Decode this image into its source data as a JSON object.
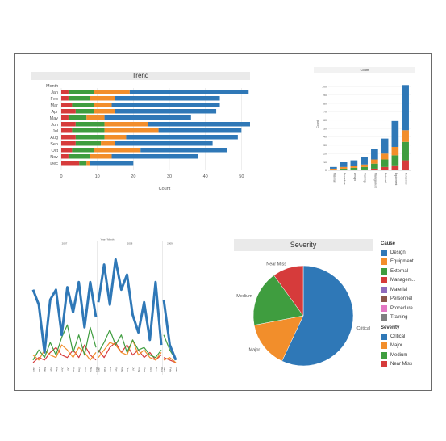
{
  "colors": {
    "Design": "#2f78b7",
    "Equipment": "#f28e2b",
    "External": "#3f9d3f",
    "Management": "#d63b3b",
    "Material": "#8f6bbd",
    "Personnel": "#8c564b",
    "Procedure": "#e377c2",
    "Training": "#7f7f7f"
  },
  "chart_data": [
    {
      "type": "bar",
      "orientation": "horizontal",
      "stacked": true,
      "title": "Trend",
      "ylabel": "Month",
      "xlabel": "Count",
      "xlim": [
        0,
        60
      ],
      "xticks": [
        "0",
        "10",
        "20",
        "30",
        "40",
        "50",
        "60"
      ],
      "grid": true,
      "categories": [
        "Jan",
        "Feb",
        "Mar",
        "Apr",
        "May",
        "Jun",
        "Jul",
        "Aug",
        "Sep",
        "Oct",
        "Nov",
        "Dec"
      ],
      "series": [
        {
          "name": "Management",
          "values": [
            2,
            2,
            3,
            4,
            2,
            4,
            3,
            4,
            4,
            3,
            2,
            5
          ]
        },
        {
          "name": "External",
          "values": [
            7,
            6,
            6,
            5,
            5,
            8,
            9,
            8,
            7,
            6,
            6,
            2
          ]
        },
        {
          "name": "Equipment",
          "values": [
            10,
            7,
            5,
            6,
            5,
            12,
            15,
            6,
            4,
            13,
            6,
            1
          ]
        },
        {
          "name": "Design",
          "values": [
            33,
            29,
            30,
            28,
            24,
            34,
            23,
            31,
            27,
            24,
            24,
            12
          ]
        }
      ]
    },
    {
      "type": "bar",
      "stacked": true,
      "title": "Count",
      "ylabel": "Count",
      "ylim": [
        0,
        110
      ],
      "yticks": [
        "0",
        "10",
        "20",
        "30",
        "40",
        "50",
        "60",
        "70",
        "80",
        "90",
        "100"
      ],
      "categories": [
        "Material",
        "Procedure",
        "Design",
        "Training",
        "Management",
        "External",
        "Equipment",
        "Personnel"
      ],
      "series": [
        {
          "name": "Near Miss",
          "values": [
            0,
            1,
            1,
            1,
            2,
            4,
            6,
            12
          ]
        },
        {
          "name": "Medium",
          "values": [
            1,
            1,
            2,
            3,
            6,
            9,
            12,
            22
          ]
        },
        {
          "name": "Major",
          "values": [
            1,
            2,
            2,
            3,
            5,
            7,
            10,
            14
          ]
        },
        {
          "name": "Critical",
          "values": [
            2,
            6,
            7,
            9,
            13,
            18,
            31,
            54
          ]
        }
      ]
    },
    {
      "type": "line",
      "title": "Year / Month",
      "panels": [
        "2007",
        "2008",
        "2009"
      ],
      "x": [
        "Jan",
        "Feb",
        "Mar",
        "Apr",
        "May",
        "Jun",
        "Jul",
        "Aug",
        "Sep",
        "Oct",
        "Nov",
        "Dec",
        "Jan",
        "Feb",
        "Mar",
        "Apr",
        "May",
        "Jun",
        "Jul",
        "Aug",
        "Sep",
        "Oct",
        "Nov",
        "Dec",
        "Jan",
        "Feb",
        "Mar"
      ],
      "series": [
        {
          "name": "Critical",
          "values": [
            30,
            24,
            5,
            26,
            30,
            12,
            31,
            21,
            33,
            15,
            33,
            19,
            25,
            40,
            24,
            42,
            30,
            36,
            20,
            13,
            25,
            10,
            33,
            8,
            26,
            8,
            2
          ]
        },
        {
          "name": "Major",
          "values": [
            4,
            2,
            6,
            4,
            3,
            8,
            6,
            3,
            7,
            5,
            2,
            5,
            3,
            6,
            9,
            8,
            5,
            4,
            10,
            4,
            6,
            3,
            2,
            5,
            2,
            3,
            1
          ]
        },
        {
          "name": "Medium",
          "values": [
            2,
            6,
            3,
            9,
            4,
            11,
            16,
            5,
            12,
            4,
            15,
            7,
            5,
            9,
            14,
            8,
            12,
            5,
            10,
            6,
            7,
            4,
            3,
            6,
            12,
            6,
            2
          ]
        },
        {
          "name": "Near Miss",
          "values": [
            1,
            3,
            2,
            5,
            7,
            4,
            3,
            6,
            3,
            8,
            4,
            2,
            6,
            3,
            7,
            9,
            5,
            8,
            4,
            6,
            3,
            5,
            2,
            4,
            3,
            2,
            1
          ]
        }
      ]
    },
    {
      "type": "pie",
      "title": "Severity",
      "categories": [
        "Critical",
        "Major",
        "Medium",
        "Near Miss"
      ],
      "values": [
        57,
        15,
        18,
        10
      ],
      "labels": [
        "Critical",
        "Major",
        "Medium",
        "Near Miss"
      ]
    }
  ],
  "legend": {
    "cause_title": "Cause",
    "cause_items": [
      "Design",
      "Equipment",
      "External",
      "Managem..",
      "Material",
      "Personnel",
      "Procedure",
      "Training"
    ],
    "severity_title": "Severity",
    "severity_items": [
      "Critical",
      "Major",
      "Medium",
      "Near Miss"
    ],
    "severity_colors": [
      "#2f78b7",
      "#f28e2b",
      "#3f9d3f",
      "#d63b3b"
    ]
  }
}
